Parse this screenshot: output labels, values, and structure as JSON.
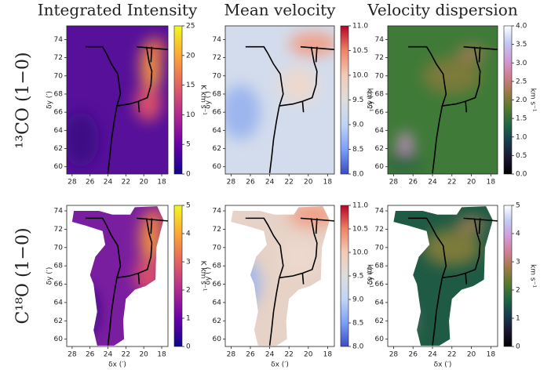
{
  "row_labels": [
    "¹³CO (1−0)",
    "C¹⁸O (1−0)"
  ],
  "chart_data": [
    {
      "type": "heatmap",
      "title": "Integrated Intensity",
      "ylabel": "δy (′)",
      "colormap": "plasma",
      "xlim": [
        28.6,
        17.3
      ],
      "ylim": [
        59.2,
        75.5
      ],
      "xticks": [
        28,
        26,
        24,
        22,
        20,
        18
      ],
      "yticks": [
        60,
        62,
        64,
        66,
        68,
        70,
        72,
        74
      ],
      "colorbar": {
        "label": "K km s⁻¹",
        "lim": [
          0,
          25
        ],
        "ticks": [
          0,
          5,
          10,
          15,
          20,
          25
        ]
      }
    },
    {
      "type": "heatmap",
      "title": "Mean velocity",
      "ylabel": "δy (′)",
      "colormap": "coolwarm",
      "xlim": [
        28.6,
        17.3
      ],
      "ylim": [
        59.2,
        75.5
      ],
      "xticks": [
        28,
        26,
        24,
        22,
        20,
        18
      ],
      "yticks": [
        60,
        62,
        64,
        66,
        68,
        70,
        72,
        74
      ],
      "colorbar": {
        "label": "km s⁻¹",
        "lim": [
          8,
          11
        ],
        "ticks": [
          {
            "value": 8,
            "label": "8.0"
          },
          8.5,
          {
            "value": 9,
            "label": "9.0"
          },
          9.5,
          {
            "value": 10,
            "label": "10.0"
          },
          10.5,
          {
            "value": 11,
            "label": "11.0"
          }
        ]
      }
    },
    {
      "type": "heatmap",
      "title": "Velocity dispersion",
      "ylabel": "δy (′)",
      "colormap": "cubehelix",
      "xlim": [
        28.6,
        17.3
      ],
      "ylim": [
        59.2,
        75.5
      ],
      "xticks": [
        28,
        26,
        24,
        22,
        20,
        18
      ],
      "yticks": [
        60,
        62,
        64,
        66,
        68,
        70,
        72,
        74
      ],
      "colorbar": {
        "label": "km s⁻¹",
        "lim": [
          0,
          4
        ],
        "ticks": [
          {
            "value": 0,
            "label": "0.0"
          },
          0.5,
          {
            "value": 1,
            "label": "1.0"
          },
          1.5,
          {
            "value": 2,
            "label": "2.0"
          },
          2.5,
          {
            "value": 3,
            "label": "3.0"
          },
          3.5,
          {
            "value": 4,
            "label": "4.0"
          }
        ]
      }
    },
    {
      "type": "heatmap",
      "xlabel": "δx (′)",
      "ylabel": "δy (′)",
      "colormap": "plasma",
      "xlim": [
        28.6,
        17.3
      ],
      "ylim": [
        59.2,
        74.6
      ],
      "xticks": [
        28,
        26,
        24,
        22,
        20,
        18
      ],
      "yticks": [
        60,
        62,
        64,
        66,
        68,
        70,
        72,
        74
      ],
      "colorbar": {
        "label": "K km s⁻¹",
        "lim": [
          0,
          5
        ],
        "ticks": [
          0,
          1,
          2,
          3,
          4,
          5
        ]
      }
    },
    {
      "type": "heatmap",
      "xlabel": "δx (′)",
      "ylabel": "δy (′)",
      "colormap": "coolwarm",
      "xlim": [
        28.6,
        17.3
      ],
      "ylim": [
        59.2,
        74.6
      ],
      "xticks": [
        28,
        26,
        24,
        22,
        20,
        18
      ],
      "yticks": [
        60,
        62,
        64,
        66,
        68,
        70,
        72,
        74
      ],
      "colorbar": {
        "label": "km s⁻¹",
        "lim": [
          8,
          11
        ],
        "ticks": [
          {
            "value": 8,
            "label": "8.0"
          },
          8.5,
          {
            "value": 9,
            "label": "9.0"
          },
          9.5,
          {
            "value": 10,
            "label": "10.0"
          },
          10.5,
          {
            "value": 11,
            "label": "11.0"
          }
        ]
      }
    },
    {
      "type": "heatmap",
      "xlabel": "δx (′)",
      "ylabel": "δy (′)",
      "colormap": "cubehelix",
      "xlim": [
        28.6,
        17.3
      ],
      "ylim": [
        59.2,
        74.6
      ],
      "xticks": [
        28,
        26,
        24,
        22,
        20,
        18
      ],
      "yticks": [
        60,
        62,
        64,
        66,
        68,
        70,
        72,
        74
      ],
      "colorbar": {
        "label": "km s⁻¹",
        "lim": [
          0,
          5
        ],
        "ticks": [
          0,
          1,
          2,
          3,
          4,
          5
        ]
      }
    }
  ]
}
